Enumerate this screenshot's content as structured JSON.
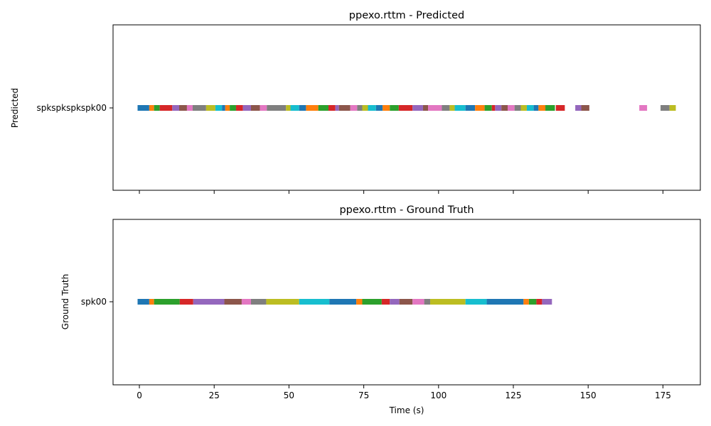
{
  "chart_data": [
    {
      "type": "timeline",
      "title": "ppexo.rttm - Predicted",
      "ylabel": "Predicted",
      "xlabel": "",
      "xlim": [
        -8.8,
        187.5
      ],
      "y_categories": [
        "spkspkspkspk00"
      ],
      "x_ticks": [
        0,
        25,
        50,
        75,
        100,
        125,
        150,
        175
      ],
      "x_tick_labels_visible": false,
      "grid": false,
      "segments": [
        {
          "start": -0.6,
          "end": 3.3,
          "color": "#1f77b4"
        },
        {
          "start": 3.3,
          "end": 4.9,
          "color": "#ff7f0e"
        },
        {
          "start": 4.9,
          "end": 6.8,
          "color": "#2ca02c"
        },
        {
          "start": 6.8,
          "end": 11.0,
          "color": "#d62728"
        },
        {
          "start": 11.0,
          "end": 13.3,
          "color": "#9467bd"
        },
        {
          "start": 13.3,
          "end": 15.9,
          "color": "#8c564b"
        },
        {
          "start": 15.9,
          "end": 17.8,
          "color": "#e377c2"
        },
        {
          "start": 17.8,
          "end": 22.3,
          "color": "#7f7f7f"
        },
        {
          "start": 22.3,
          "end": 25.4,
          "color": "#bcbd22"
        },
        {
          "start": 25.4,
          "end": 27.6,
          "color": "#17becf"
        },
        {
          "start": 27.6,
          "end": 28.7,
          "color": "#1f77b4"
        },
        {
          "start": 28.7,
          "end": 30.2,
          "color": "#ff7f0e"
        },
        {
          "start": 30.2,
          "end": 32.3,
          "color": "#2ca02c"
        },
        {
          "start": 32.3,
          "end": 34.6,
          "color": "#d62728"
        },
        {
          "start": 34.6,
          "end": 37.3,
          "color": "#9467bd"
        },
        {
          "start": 37.3,
          "end": 40.3,
          "color": "#8c564b"
        },
        {
          "start": 40.3,
          "end": 42.6,
          "color": "#e377c2"
        },
        {
          "start": 42.6,
          "end": 49.0,
          "color": "#7f7f7f"
        },
        {
          "start": 49.0,
          "end": 50.5,
          "color": "#bcbd22"
        },
        {
          "start": 50.5,
          "end": 53.4,
          "color": "#17becf"
        },
        {
          "start": 53.4,
          "end": 55.7,
          "color": "#1f77b4"
        },
        {
          "start": 55.7,
          "end": 59.8,
          "color": "#ff7f0e"
        },
        {
          "start": 59.8,
          "end": 63.2,
          "color": "#2ca02c"
        },
        {
          "start": 63.2,
          "end": 65.5,
          "color": "#d62728"
        },
        {
          "start": 65.5,
          "end": 66.7,
          "color": "#9467bd"
        },
        {
          "start": 66.7,
          "end": 70.5,
          "color": "#8c564b"
        },
        {
          "start": 70.5,
          "end": 72.8,
          "color": "#e377c2"
        },
        {
          "start": 72.8,
          "end": 74.5,
          "color": "#7f7f7f"
        },
        {
          "start": 74.5,
          "end": 76.4,
          "color": "#bcbd22"
        },
        {
          "start": 76.4,
          "end": 79.1,
          "color": "#17becf"
        },
        {
          "start": 79.1,
          "end": 81.3,
          "color": "#1f77b4"
        },
        {
          "start": 81.3,
          "end": 83.7,
          "color": "#ff7f0e"
        },
        {
          "start": 83.7,
          "end": 86.7,
          "color": "#2ca02c"
        },
        {
          "start": 86.7,
          "end": 91.3,
          "color": "#d62728"
        },
        {
          "start": 91.3,
          "end": 94.8,
          "color": "#9467bd"
        },
        {
          "start": 94.8,
          "end": 96.5,
          "color": "#8c564b"
        },
        {
          "start": 96.5,
          "end": 101.1,
          "color": "#e377c2"
        },
        {
          "start": 101.1,
          "end": 103.7,
          "color": "#7f7f7f"
        },
        {
          "start": 103.7,
          "end": 105.4,
          "color": "#bcbd22"
        },
        {
          "start": 105.4,
          "end": 109.0,
          "color": "#17becf"
        },
        {
          "start": 109.0,
          "end": 112.2,
          "color": "#1f77b4"
        },
        {
          "start": 112.2,
          "end": 115.4,
          "color": "#ff7f0e"
        },
        {
          "start": 115.4,
          "end": 117.8,
          "color": "#2ca02c"
        },
        {
          "start": 117.8,
          "end": 118.9,
          "color": "#d62728"
        },
        {
          "start": 118.9,
          "end": 121.0,
          "color": "#9467bd"
        },
        {
          "start": 121.0,
          "end": 123.1,
          "color": "#8c564b"
        },
        {
          "start": 123.1,
          "end": 125.4,
          "color": "#e377c2"
        },
        {
          "start": 125.4,
          "end": 127.5,
          "color": "#7f7f7f"
        },
        {
          "start": 127.5,
          "end": 129.5,
          "color": "#bcbd22"
        },
        {
          "start": 129.5,
          "end": 131.8,
          "color": "#17becf"
        },
        {
          "start": 131.8,
          "end": 133.4,
          "color": "#1f77b4"
        },
        {
          "start": 133.4,
          "end": 135.7,
          "color": "#ff7f0e"
        },
        {
          "start": 135.7,
          "end": 138.9,
          "color": "#2ca02c"
        },
        {
          "start": 139.2,
          "end": 142.2,
          "color": "#d62728"
        },
        {
          "start": 145.7,
          "end": 147.7,
          "color": "#9467bd"
        },
        {
          "start": 147.7,
          "end": 150.4,
          "color": "#8c564b"
        },
        {
          "start": 167.1,
          "end": 169.7,
          "color": "#e377c2"
        },
        {
          "start": 174.2,
          "end": 177.2,
          "color": "#7f7f7f"
        },
        {
          "start": 177.2,
          "end": 179.3,
          "color": "#bcbd22"
        }
      ]
    },
    {
      "type": "timeline",
      "title": "ppexo.rttm - Ground Truth",
      "ylabel": "Ground Truth",
      "xlabel": "Time (s)",
      "xlim": [
        -8.8,
        187.5
      ],
      "y_categories": [
        "spk00"
      ],
      "x_ticks": [
        0,
        25,
        50,
        75,
        100,
        125,
        150,
        175
      ],
      "x_tick_labels_visible": true,
      "grid": false,
      "segments": [
        {
          "start": -0.6,
          "end": 3.3,
          "color": "#1f77b4"
        },
        {
          "start": 3.3,
          "end": 4.9,
          "color": "#ff7f0e"
        },
        {
          "start": 4.9,
          "end": 13.5,
          "color": "#2ca02c"
        },
        {
          "start": 13.5,
          "end": 18.0,
          "color": "#d62728"
        },
        {
          "start": 18.0,
          "end": 28.4,
          "color": "#9467bd"
        },
        {
          "start": 28.4,
          "end": 34.2,
          "color": "#8c564b"
        },
        {
          "start": 34.2,
          "end": 37.3,
          "color": "#e377c2"
        },
        {
          "start": 37.3,
          "end": 42.4,
          "color": "#7f7f7f"
        },
        {
          "start": 42.4,
          "end": 53.4,
          "color": "#bcbd22"
        },
        {
          "start": 53.4,
          "end": 63.5,
          "color": "#17becf"
        },
        {
          "start": 63.5,
          "end": 72.5,
          "color": "#1f77b4"
        },
        {
          "start": 72.5,
          "end": 74.5,
          "color": "#ff7f0e"
        },
        {
          "start": 74.5,
          "end": 81.0,
          "color": "#2ca02c"
        },
        {
          "start": 81.0,
          "end": 83.7,
          "color": "#d62728"
        },
        {
          "start": 83.7,
          "end": 86.9,
          "color": "#9467bd"
        },
        {
          "start": 86.9,
          "end": 91.3,
          "color": "#8c564b"
        },
        {
          "start": 91.3,
          "end": 95.2,
          "color": "#e377c2"
        },
        {
          "start": 95.2,
          "end": 97.2,
          "color": "#7f7f7f"
        },
        {
          "start": 97.2,
          "end": 109.0,
          "color": "#bcbd22"
        },
        {
          "start": 109.0,
          "end": 116.1,
          "color": "#17becf"
        },
        {
          "start": 116.1,
          "end": 128.4,
          "color": "#1f77b4"
        },
        {
          "start": 128.4,
          "end": 130.2,
          "color": "#ff7f0e"
        },
        {
          "start": 130.2,
          "end": 132.7,
          "color": "#2ca02c"
        },
        {
          "start": 132.7,
          "end": 134.6,
          "color": "#d62728"
        },
        {
          "start": 134.6,
          "end": 137.9,
          "color": "#9467bd"
        }
      ]
    }
  ]
}
